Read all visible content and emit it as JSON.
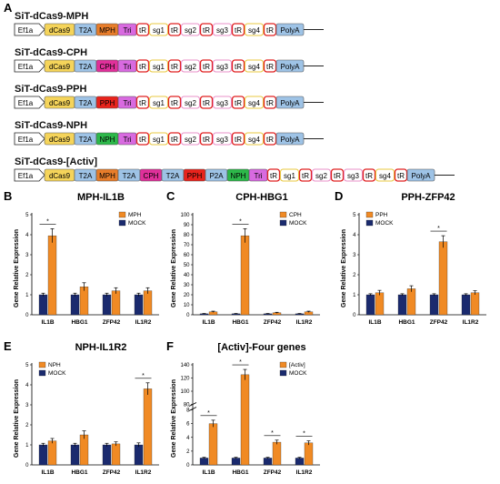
{
  "constructs": [
    {
      "label": "SiT-dCas9-MPH",
      "elements": [
        {
          "text": "Ef1a",
          "kind": "arrow",
          "color": "#ffffff"
        },
        {
          "text": "dCas9",
          "kind": "box",
          "color": "#f5d45a"
        },
        {
          "text": "T2A",
          "kind": "box",
          "color": "#9ec3e6"
        },
        {
          "text": "MPH",
          "kind": "box",
          "color": "#e87d2a"
        },
        {
          "text": "Tri",
          "kind": "box",
          "color": "#d86ae0"
        },
        {
          "text": "tR",
          "kind": "red"
        },
        {
          "text": "sg1",
          "kind": "yellow"
        },
        {
          "text": "tR",
          "kind": "red"
        },
        {
          "text": "sg2",
          "kind": "pink"
        },
        {
          "text": "tR",
          "kind": "red"
        },
        {
          "text": "sg3",
          "kind": "pink"
        },
        {
          "text": "tR",
          "kind": "red"
        },
        {
          "text": "sg4",
          "kind": "yellow"
        },
        {
          "text": "tR",
          "kind": "red"
        },
        {
          "text": "PolyA",
          "kind": "box",
          "color": "#9ec3e6"
        }
      ]
    },
    {
      "label": "SiT-dCas9-CPH",
      "elements": [
        {
          "text": "Ef1a",
          "kind": "arrow",
          "color": "#ffffff"
        },
        {
          "text": "dCas9",
          "kind": "box",
          "color": "#f5d45a"
        },
        {
          "text": "T2A",
          "kind": "box",
          "color": "#9ec3e6"
        },
        {
          "text": "CPH",
          "kind": "box",
          "color": "#e0309a"
        },
        {
          "text": "Tri",
          "kind": "box",
          "color": "#d86ae0"
        },
        {
          "text": "tR",
          "kind": "red"
        },
        {
          "text": "sg1",
          "kind": "yellow"
        },
        {
          "text": "tR",
          "kind": "red"
        },
        {
          "text": "sg2",
          "kind": "pink"
        },
        {
          "text": "tR",
          "kind": "red"
        },
        {
          "text": "sg3",
          "kind": "pink"
        },
        {
          "text": "tR",
          "kind": "red"
        },
        {
          "text": "sg4",
          "kind": "yellow"
        },
        {
          "text": "tR",
          "kind": "red"
        },
        {
          "text": "PolyA",
          "kind": "box",
          "color": "#9ec3e6"
        }
      ]
    },
    {
      "label": "SiT-dCas9-PPH",
      "elements": [
        {
          "text": "Ef1a",
          "kind": "arrow",
          "color": "#ffffff"
        },
        {
          "text": "dCas9",
          "kind": "box",
          "color": "#f5d45a"
        },
        {
          "text": "T2A",
          "kind": "box",
          "color": "#9ec3e6"
        },
        {
          "text": "PPH",
          "kind": "box",
          "color": "#e8231c"
        },
        {
          "text": "Tri",
          "kind": "box",
          "color": "#d86ae0"
        },
        {
          "text": "tR",
          "kind": "red"
        },
        {
          "text": "sg1",
          "kind": "yellow"
        },
        {
          "text": "tR",
          "kind": "red"
        },
        {
          "text": "sg2",
          "kind": "pink"
        },
        {
          "text": "tR",
          "kind": "red"
        },
        {
          "text": "sg3",
          "kind": "pink"
        },
        {
          "text": "tR",
          "kind": "red"
        },
        {
          "text": "sg4",
          "kind": "yellow"
        },
        {
          "text": "tR",
          "kind": "red"
        },
        {
          "text": "PolyA",
          "kind": "box",
          "color": "#9ec3e6"
        }
      ]
    },
    {
      "label": "SiT-dCas9-NPH",
      "elements": [
        {
          "text": "Ef1a",
          "kind": "arrow",
          "color": "#ffffff"
        },
        {
          "text": "dCas9",
          "kind": "box",
          "color": "#f5d45a"
        },
        {
          "text": "T2A",
          "kind": "box",
          "color": "#9ec3e6"
        },
        {
          "text": "NPH",
          "kind": "box",
          "color": "#2db84a"
        },
        {
          "text": "Tri",
          "kind": "box",
          "color": "#d86ae0"
        },
        {
          "text": "tR",
          "kind": "red"
        },
        {
          "text": "sg1",
          "kind": "yellow"
        },
        {
          "text": "tR",
          "kind": "red"
        },
        {
          "text": "sg2",
          "kind": "pink"
        },
        {
          "text": "tR",
          "kind": "red"
        },
        {
          "text": "sg3",
          "kind": "pink"
        },
        {
          "text": "tR",
          "kind": "red"
        },
        {
          "text": "sg4",
          "kind": "yellow"
        },
        {
          "text": "tR",
          "kind": "red"
        },
        {
          "text": "PolyA",
          "kind": "box",
          "color": "#9ec3e6"
        }
      ]
    },
    {
      "label": "SiT-dCas9-[Activ]",
      "elements": [
        {
          "text": "Ef1a",
          "kind": "arrow",
          "color": "#ffffff"
        },
        {
          "text": "dCas9",
          "kind": "box",
          "color": "#f5d45a"
        },
        {
          "text": "T2A",
          "kind": "box",
          "color": "#9ec3e6"
        },
        {
          "text": "MPH",
          "kind": "box",
          "color": "#e87d2a"
        },
        {
          "text": "T2A",
          "kind": "box",
          "color": "#9ec3e6"
        },
        {
          "text": "CPH",
          "kind": "box",
          "color": "#e0309a"
        },
        {
          "text": "T2A",
          "kind": "box",
          "color": "#9ec3e6"
        },
        {
          "text": "PPH",
          "kind": "box",
          "color": "#e8231c"
        },
        {
          "text": "P2A",
          "kind": "box",
          "color": "#9ec3e6"
        },
        {
          "text": "NPH",
          "kind": "box",
          "color": "#2db84a"
        },
        {
          "text": "Tri",
          "kind": "box",
          "color": "#d86ae0"
        },
        {
          "text": "tR",
          "kind": "red"
        },
        {
          "text": "sg1",
          "kind": "yellow"
        },
        {
          "text": "tR",
          "kind": "red"
        },
        {
          "text": "sg2",
          "kind": "pink"
        },
        {
          "text": "tR",
          "kind": "red"
        },
        {
          "text": "sg3",
          "kind": "pink"
        },
        {
          "text": "tR",
          "kind": "red"
        },
        {
          "text": "sg4",
          "kind": "yellow"
        },
        {
          "text": "tR",
          "kind": "red"
        },
        {
          "text": "PolyA",
          "kind": "box",
          "color": "#9ec3e6"
        }
      ]
    }
  ],
  "colors": {
    "treated": "#f08a24",
    "mock": "#1a2a6e",
    "trna": "#e02020",
    "sg_yellow": "#e8c840",
    "sg_pink": "#e890c8"
  },
  "chart_data": [
    {
      "panel": "B",
      "type": "bar",
      "title": "MPH-IL1B",
      "ylabel": "Gene Relative Expression",
      "ylim": [
        0,
        5
      ],
      "yticks": [
        0,
        1,
        2,
        3,
        4,
        5
      ],
      "categories": [
        "IL1B",
        "HBG1",
        "ZFP42",
        "IL1R2"
      ],
      "series": [
        {
          "name": "MOCK",
          "values": [
            1.0,
            1.0,
            1.0,
            1.0
          ],
          "err": [
            0.08,
            0.08,
            0.08,
            0.08
          ]
        },
        {
          "name": "MPH",
          "values": [
            3.95,
            1.4,
            1.2,
            1.2
          ],
          "err": [
            0.35,
            0.2,
            0.15,
            0.15
          ]
        }
      ],
      "legend": [
        "MPH",
        "MOCK"
      ],
      "legend_position": "top-right",
      "significance": [
        0
      ]
    },
    {
      "panel": "C",
      "type": "bar",
      "title": "CPH-HBG1",
      "ylabel": "Gene Relative Expression",
      "ylim": [
        0,
        100
      ],
      "yticks": [
        0,
        10,
        20,
        30,
        40,
        50,
        60,
        70,
        80,
        90,
        100
      ],
      "categories": [
        "IL1B",
        "HBG1",
        "ZFP42",
        "IL1R2"
      ],
      "series": [
        {
          "name": "MOCK",
          "values": [
            1,
            1,
            1,
            1
          ],
          "err": [
            0.3,
            0.3,
            0.3,
            0.3
          ]
        },
        {
          "name": "CPH",
          "values": [
            3,
            79,
            2,
            3
          ],
          "err": [
            0.6,
            7,
            0.5,
            0.6
          ]
        }
      ],
      "legend": [
        "CPH",
        "MOCK"
      ],
      "legend_position": "top-right",
      "significance": [
        1
      ]
    },
    {
      "panel": "D",
      "type": "bar",
      "title": "PPH-ZFP42",
      "ylabel": "Gene Relative Expression",
      "ylim": [
        0,
        5
      ],
      "yticks": [
        0,
        1,
        2,
        3,
        4,
        5
      ],
      "categories": [
        "IL1B",
        "HBG1",
        "ZFP42",
        "IL1R2"
      ],
      "series": [
        {
          "name": "MOCK",
          "values": [
            1,
            1,
            1,
            1
          ],
          "err": [
            0.05,
            0.05,
            0.05,
            0.05
          ]
        },
        {
          "name": "PPH",
          "values": [
            1.1,
            1.3,
            3.65,
            1.1
          ],
          "err": [
            0.12,
            0.15,
            0.3,
            0.1
          ]
        }
      ],
      "legend": [
        "PPH",
        "MOCK"
      ],
      "legend_position": "top-left",
      "significance": [
        2
      ]
    },
    {
      "panel": "E",
      "type": "bar",
      "title": "NPH-IL1R2",
      "ylabel": "Gene Relative Expression",
      "ylim": [
        0,
        5
      ],
      "yticks": [
        0,
        1,
        2,
        3,
        4,
        5
      ],
      "categories": [
        "IL1B",
        "HBG1",
        "ZFP42",
        "IL1R2"
      ],
      "series": [
        {
          "name": "MOCK",
          "values": [
            1,
            1,
            1,
            1
          ],
          "err": [
            0.08,
            0.08,
            0.08,
            0.1
          ]
        },
        {
          "name": "NPH",
          "values": [
            1.2,
            1.5,
            1.05,
            3.8
          ],
          "err": [
            0.12,
            0.2,
            0.1,
            0.3
          ]
        }
      ],
      "legend": [
        "NPH",
        "MOCK"
      ],
      "legend_position": "top-left",
      "significance": [
        3
      ]
    },
    {
      "panel": "F",
      "type": "bar",
      "title": "[Activ]-Four genes",
      "ylabel": "Gene Relative Expression",
      "broken_axis": true,
      "yticks_lower": [
        0,
        2,
        4,
        6,
        8
      ],
      "yticks_upper": [
        80,
        100,
        120,
        140
      ],
      "categories": [
        "IL1B",
        "HBG1",
        "ZFP42",
        "IL1R2"
      ],
      "series": [
        {
          "name": "MOCK",
          "values": [
            1,
            1,
            1,
            1
          ],
          "err": [
            0.1,
            0.1,
            0.1,
            0.1
          ]
        },
        {
          "name": "[Activ]",
          "values": [
            6,
            125,
            3.3,
            3.2
          ],
          "err": [
            0.5,
            8,
            0.3,
            0.3
          ]
        }
      ],
      "legend": [
        "[Activ]",
        "MOCK"
      ],
      "legend_position": "top-right",
      "significance": [
        0,
        1,
        2,
        3
      ]
    }
  ]
}
